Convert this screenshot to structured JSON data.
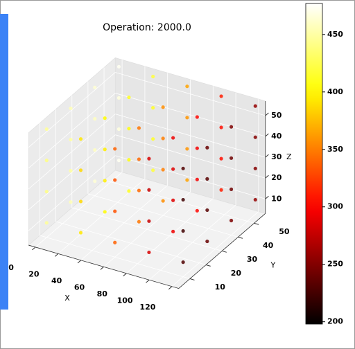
{
  "chart_data": {
    "type": "scatter3d",
    "title": "Operation: 2000.0",
    "xlabel": "X",
    "ylabel": "Y",
    "zlabel": "Z",
    "xlim": [
      -6,
      126
    ],
    "ylim": [
      3,
      57
    ],
    "zlim": [
      3,
      57
    ],
    "xticks": [
      0,
      20,
      40,
      60,
      80,
      100,
      120
    ],
    "yticks": [
      10,
      20,
      30,
      40,
      50
    ],
    "zticks": [
      10,
      20,
      30,
      40,
      50
    ],
    "colormap": "hot",
    "clim": [
      198,
      477
    ],
    "colorbar_ticks": [
      200,
      250,
      300,
      350,
      400,
      450
    ],
    "x": [
      0,
      0,
      0,
      0,
      0,
      0,
      0,
      0,
      0,
      0,
      0,
      0,
      0,
      0,
      0,
      0,
      30,
      30,
      30,
      30,
      30,
      30,
      30,
      30,
      30,
      30,
      30,
      30,
      30,
      30,
      30,
      30,
      60,
      60,
      60,
      60,
      60,
      60,
      60,
      60,
      60,
      60,
      60,
      60,
      60,
      60,
      60,
      60,
      90,
      90,
      90,
      90,
      90,
      90,
      90,
      90,
      90,
      90,
      90,
      90,
      90,
      90,
      90,
      90,
      120,
      120,
      120,
      120,
      120,
      120,
      120,
      120,
      120,
      120,
      120,
      120,
      120,
      120,
      120,
      120
    ],
    "y": [
      10,
      10,
      10,
      10,
      25,
      25,
      25,
      25,
      40,
      40,
      40,
      40,
      55,
      55,
      55,
      55,
      10,
      10,
      10,
      10,
      25,
      25,
      25,
      25,
      40,
      40,
      40,
      40,
      55,
      55,
      55,
      55,
      10,
      10,
      10,
      10,
      25,
      25,
      25,
      25,
      40,
      40,
      40,
      40,
      55,
      55,
      55,
      55,
      10,
      10,
      10,
      10,
      25,
      25,
      25,
      25,
      40,
      40,
      40,
      40,
      55,
      55,
      55,
      55,
      10,
      10,
      10,
      10,
      25,
      25,
      25,
      25,
      40,
      40,
      40,
      40,
      55,
      55,
      55,
      55
    ],
    "z": [
      10,
      25,
      40,
      55,
      10,
      25,
      40,
      55,
      10,
      25,
      40,
      55,
      10,
      25,
      40,
      55,
      10,
      25,
      40,
      55,
      10,
      25,
      40,
      55,
      10,
      25,
      40,
      55,
      10,
      25,
      40,
      55,
      10,
      25,
      40,
      55,
      10,
      25,
      40,
      55,
      10,
      25,
      40,
      55,
      10,
      25,
      40,
      55,
      10,
      25,
      40,
      55,
      10,
      25,
      40,
      55,
      10,
      25,
      40,
      55,
      10,
      25,
      40,
      55,
      10,
      25,
      40,
      55,
      10,
      25,
      40,
      55,
      10,
      25,
      40,
      55,
      10,
      25,
      40,
      55
    ],
    "values": [
      446,
      440,
      440,
      446,
      455,
      449,
      449,
      455,
      464,
      458,
      458,
      464,
      473,
      467,
      467,
      473,
      392,
      386,
      386,
      392,
      401,
      395,
      395,
      401,
      410,
      404,
      404,
      410,
      419,
      413,
      413,
      419,
      338,
      332,
      332,
      338,
      347,
      341,
      341,
      347,
      356,
      350,
      350,
      356,
      365,
      359,
      359,
      365,
      284,
      278,
      278,
      284,
      293,
      287,
      287,
      293,
      302,
      296,
      296,
      302,
      311,
      305,
      305,
      311,
      230,
      224,
      224,
      230,
      239,
      233,
      233,
      239,
      248,
      242,
      242,
      248,
      257,
      251,
      251,
      257
    ]
  }
}
